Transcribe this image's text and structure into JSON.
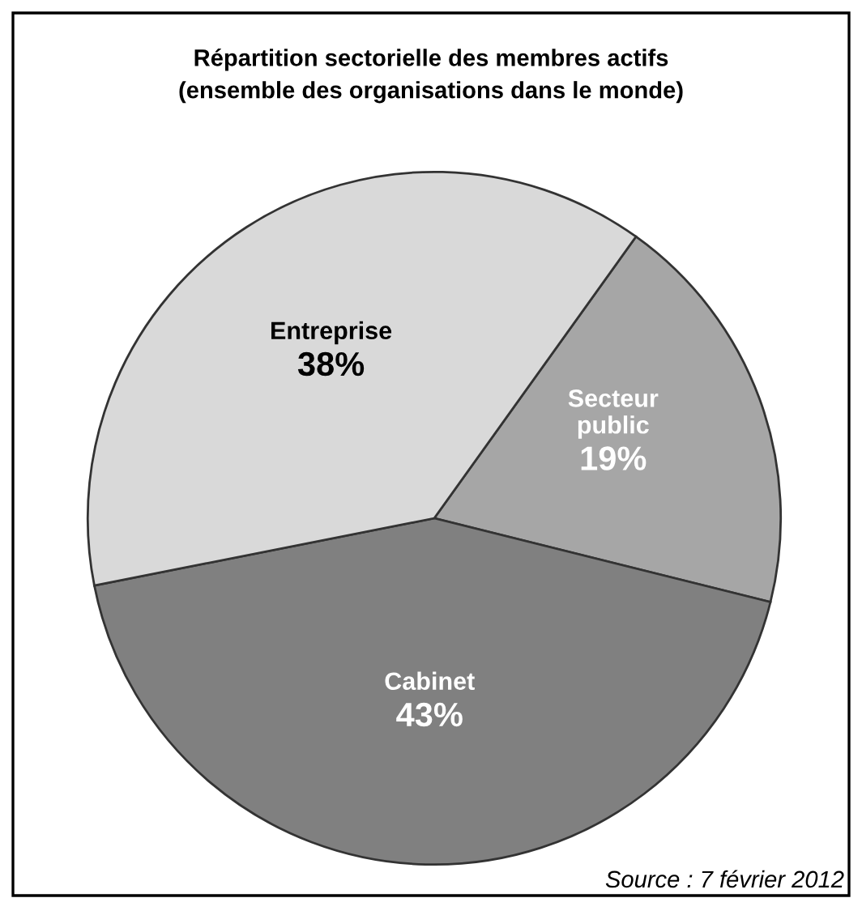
{
  "chart_data": {
    "type": "pie",
    "title": "Répartition sectorielle des membres actifs\n(ensemble des organisations dans le monde)",
    "categories": [
      "Secteur public",
      "Cabinet",
      "Entreprise"
    ],
    "values": [
      19,
      43,
      38
    ],
    "colors": [
      "#a6a6a6",
      "#808080",
      "#d9d9d9"
    ],
    "value_labels": [
      "19%",
      "43%",
      "38%"
    ],
    "annotations": [
      "Source : 7 février 2012"
    ]
  }
}
